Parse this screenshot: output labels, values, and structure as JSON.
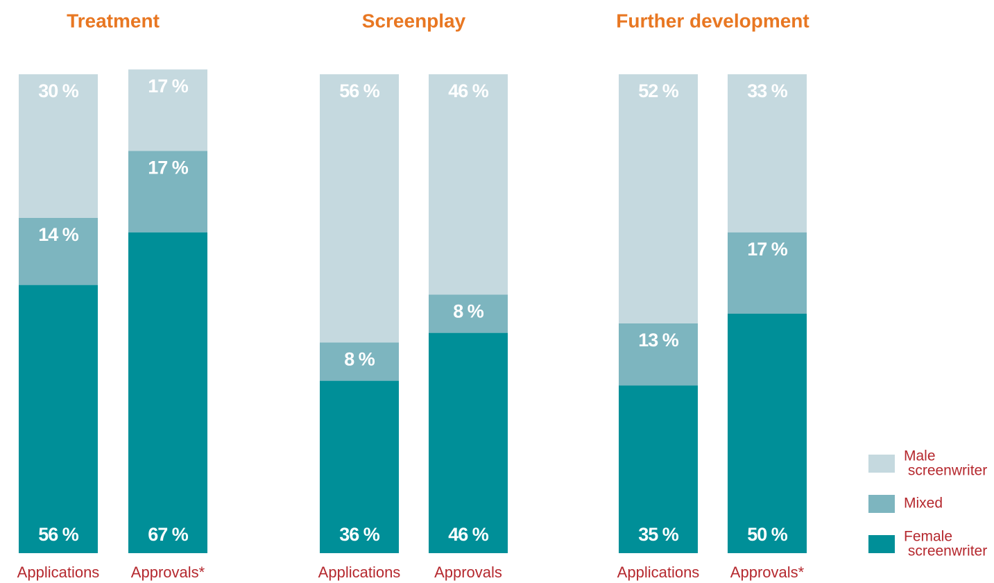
{
  "chart_data": [
    {
      "type": "stacked_bar",
      "title": "Treatment",
      "categories": [
        "Applications",
        "Approvals*"
      ],
      "ylim": [
        0,
        100
      ],
      "series": [
        {
          "name": "Female screenwriter",
          "color": "#008f98",
          "values": [
            56,
            67
          ],
          "value_labels": [
            "56 %",
            "67 %"
          ]
        },
        {
          "name": "Mixed",
          "color": "#7db5bf",
          "values": [
            14,
            17
          ],
          "value_labels": [
            "14 %",
            "17 %"
          ]
        },
        {
          "name": "Male screenwriter",
          "color": "#c5d9df",
          "values": [
            30,
            17
          ],
          "value_labels": [
            "30 %",
            "17 %"
          ]
        }
      ]
    },
    {
      "type": "stacked_bar",
      "title": "Screenplay",
      "categories": [
        "Applications",
        "Approvals"
      ],
      "ylim": [
        0,
        100
      ],
      "series": [
        {
          "name": "Female screenwriter",
          "color": "#008f98",
          "values": [
            36,
            46
          ],
          "value_labels": [
            "36 %",
            "46 %"
          ]
        },
        {
          "name": "Mixed",
          "color": "#7db5bf",
          "values": [
            8,
            8
          ],
          "value_labels": [
            "8 %",
            "8 %"
          ]
        },
        {
          "name": "Male screenwriter",
          "color": "#c5d9df",
          "values": [
            56,
            46
          ],
          "value_labels": [
            "56 %",
            "46 %"
          ]
        }
      ]
    },
    {
      "type": "stacked_bar",
      "title": "Further development",
      "categories": [
        "Applications",
        "Approvals*"
      ],
      "ylim": [
        0,
        100
      ],
      "series": [
        {
          "name": "Female screenwriter",
          "color": "#008f98",
          "values": [
            35,
            50
          ],
          "value_labels": [
            "35 %",
            "50 %"
          ]
        },
        {
          "name": "Mixed",
          "color": "#7db5bf",
          "values": [
            13,
            17
          ],
          "value_labels": [
            "13 %",
            "17 %"
          ]
        },
        {
          "name": "Male screenwriter",
          "color": "#c5d9df",
          "values": [
            52,
            33
          ],
          "value_labels": [
            "52 %",
            "33 %"
          ]
        }
      ]
    }
  ]
}
